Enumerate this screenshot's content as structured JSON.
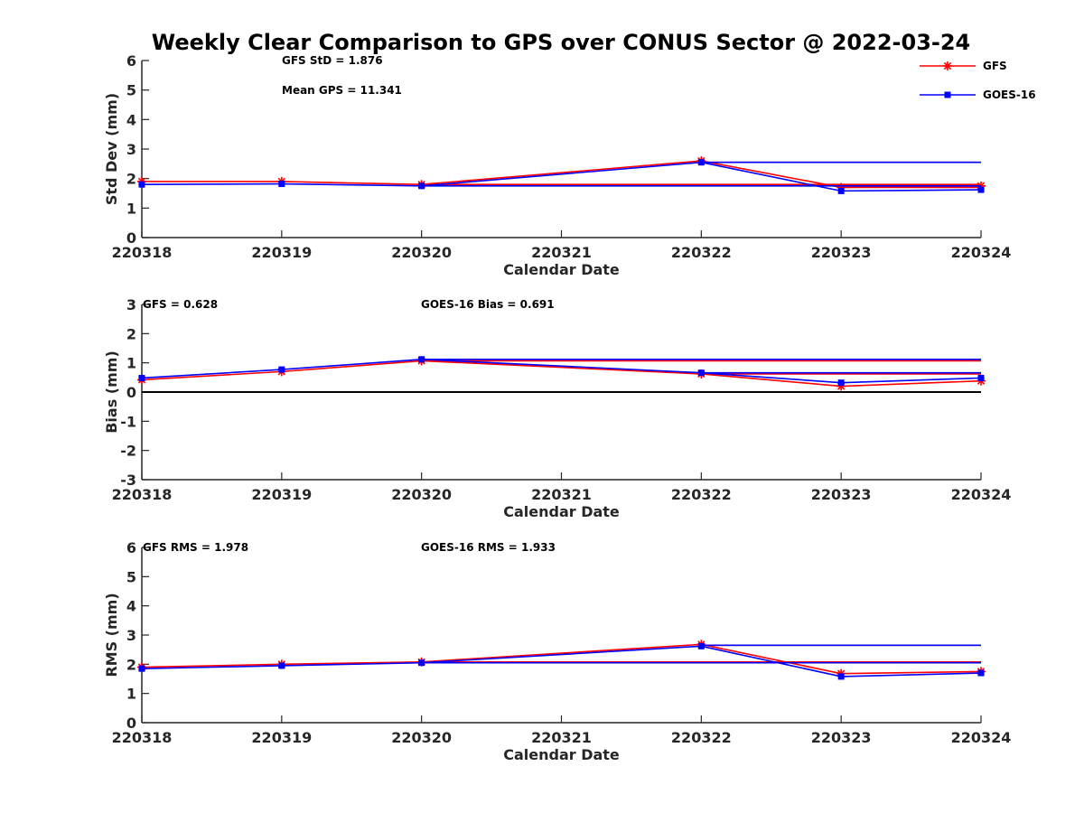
{
  "title": "Weekly Clear Comparison to GPS over CONUS Sector @ 2022-03-24",
  "colors": {
    "gfs": "#ff0000",
    "goes": "#0000ff",
    "zero_line": "#000000"
  },
  "legend": [
    {
      "name": "GFS",
      "marker": "star"
    },
    {
      "name": "GOES-16",
      "marker": "square"
    }
  ],
  "chart_data": [
    {
      "type": "line",
      "ylabel": "Std Dev (mm)",
      "xlabel": "Calendar Date",
      "categories": [
        "220318",
        "220319",
        "220320",
        "220321",
        "220322",
        "220323",
        "220324"
      ],
      "ylim": [
        0,
        6
      ],
      "yticks": [
        0,
        1,
        2,
        3,
        4,
        5,
        6
      ],
      "annotations": [
        {
          "text": "GFS StD = 1.876",
          "pos": "top-left"
        },
        {
          "text": "Mean GPS = 11.341",
          "pos": "upper-left"
        }
      ],
      "series": [
        {
          "name": "GFS",
          "x": [
            0,
            1,
            2,
            4,
            5,
            6
          ],
          "values": [
            1.9,
            1.9,
            1.8,
            2.6,
            1.7,
            1.75
          ],
          "ref_lines": [
            {
              "from": 2,
              "to": 6,
              "y": 1.8
            },
            {
              "from": 4,
              "to": 6,
              "y": 2.55
            },
            {
              "from": 5,
              "to": 6,
              "y": 1.7
            }
          ]
        },
        {
          "name": "GOES-16",
          "x": [
            0,
            1,
            2,
            4,
            5,
            6
          ],
          "values": [
            1.8,
            1.82,
            1.75,
            2.55,
            1.58,
            1.62
          ],
          "ref_lines": [
            {
              "from": 2,
              "to": 6,
              "y": 1.75
            },
            {
              "from": 4,
              "to": 6,
              "y": 2.55
            }
          ]
        }
      ]
    },
    {
      "type": "line",
      "ylabel": "Bias (mm)",
      "xlabel": "Calendar Date",
      "categories": [
        "220318",
        "220319",
        "220320",
        "220321",
        "220322",
        "220323",
        "220324"
      ],
      "ylim": [
        -3,
        3
      ],
      "yticks": [
        -3,
        -2,
        -1,
        0,
        1,
        2,
        3
      ],
      "zero_line": true,
      "annotations": [
        {
          "text": "GFS = 0.628",
          "pos": "top-left"
        },
        {
          "text": "GOES-16 Bias  = 0.691",
          "pos": "top-center"
        }
      ],
      "series": [
        {
          "name": "GFS",
          "x": [
            0,
            1,
            2,
            4,
            5,
            6
          ],
          "values": [
            0.42,
            0.7,
            1.07,
            0.62,
            0.2,
            0.38
          ],
          "ref_lines": [
            {
              "from": 2,
              "to": 6,
              "y": 1.07
            },
            {
              "from": 4,
              "to": 6,
              "y": 0.62
            }
          ]
        },
        {
          "name": "GOES-16",
          "x": [
            0,
            1,
            2,
            4,
            5,
            6
          ],
          "values": [
            0.48,
            0.77,
            1.12,
            0.66,
            0.32,
            0.48
          ],
          "ref_lines": [
            {
              "from": 2,
              "to": 6,
              "y": 1.12
            },
            {
              "from": 4,
              "to": 6,
              "y": 0.66
            }
          ]
        }
      ]
    },
    {
      "type": "line",
      "ylabel": "RMS (mm)",
      "xlabel": "Calendar Date",
      "categories": [
        "220318",
        "220319",
        "220320",
        "220321",
        "220322",
        "220323",
        "220324"
      ],
      "ylim": [
        0,
        6
      ],
      "yticks": [
        0,
        1,
        2,
        3,
        4,
        5,
        6
      ],
      "annotations": [
        {
          "text": "GFS RMS = 1.978",
          "pos": "top-left"
        },
        {
          "text": "GOES-16 RMS = 1.933",
          "pos": "top-center"
        }
      ],
      "series": [
        {
          "name": "GFS",
          "x": [
            0,
            1,
            2,
            4,
            5,
            6
          ],
          "values": [
            1.9,
            2.0,
            2.08,
            2.68,
            1.68,
            1.75
          ],
          "ref_lines": [
            {
              "from": 2,
              "to": 6,
              "y": 2.08
            },
            {
              "from": 4,
              "to": 6,
              "y": 2.65
            }
          ]
        },
        {
          "name": "GOES-16",
          "x": [
            0,
            1,
            2,
            4,
            5,
            6
          ],
          "values": [
            1.85,
            1.95,
            2.05,
            2.62,
            1.58,
            1.7
          ],
          "ref_lines": [
            {
              "from": 2,
              "to": 6,
              "y": 2.05
            },
            {
              "from": 4,
              "to": 6,
              "y": 2.65
            }
          ]
        }
      ]
    }
  ]
}
